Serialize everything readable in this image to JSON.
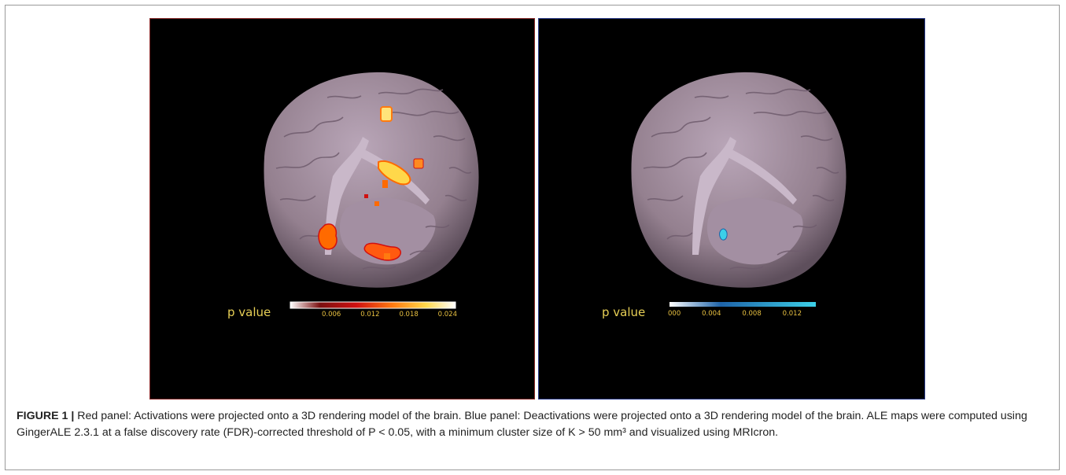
{
  "panels": {
    "left": {
      "legend_label": "p value",
      "ticks": [
        "0.006",
        "0.012",
        "0.018",
        "0.024"
      ],
      "colorscale": [
        "#ffffff",
        "#cc0000",
        "#ff6a00",
        "#ffd84a",
        "#ffffff"
      ]
    },
    "right": {
      "legend_label": "p value",
      "ticks": [
        "000",
        "0.004",
        "0.008",
        "0.012"
      ],
      "colorscale": [
        "#ffffff",
        "#1e63a8",
        "#3cd0e8"
      ]
    }
  },
  "caption": {
    "label": "FIGURE 1 |",
    "text": " Red panel: Activations were projected onto a 3D rendering model of the brain. Blue panel: Deactivations were projected onto a 3D rendering model of the brain. ALE maps were computed using GingerALE 2.3.1 at a false discovery rate (FDR)-corrected threshold of P < 0.05, with a minimum cluster size of K > 50 mm³ and visualized using MRIcron."
  }
}
